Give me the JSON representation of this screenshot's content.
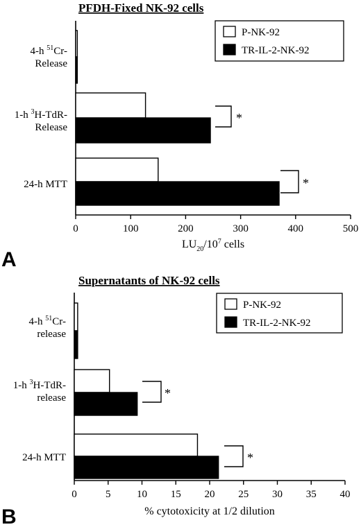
{
  "figure": {
    "background": "#ffffff"
  },
  "chart_data": [
    {
      "panel": "A",
      "type": "bar",
      "orientation": "horizontal",
      "title": "PFDH-Fixed NK-92 cells",
      "xlabel": "LU20/10^7 cells",
      "xlabel_parts": {
        "base": "LU",
        "sub": "20",
        "mid": "/10",
        "sup": "7",
        "tail": " cells"
      },
      "xlim": [
        0,
        500
      ],
      "xticks": [
        0,
        100,
        200,
        300,
        400,
        500
      ],
      "categories": [
        {
          "line1_pre": "4-h ",
          "line1_sup": "51",
          "line1_post": "Cr-",
          "line2": "Release"
        },
        {
          "line1_pre": "1-h ",
          "line1_sup": "3",
          "line1_post": "H-TdR-",
          "line2": "Release"
        },
        {
          "line1_pre": "24-h MTT",
          "line1_sup": "",
          "line1_post": "",
          "line2": ""
        }
      ],
      "series": [
        {
          "name": "P-NK-92",
          "color": "#ffffff",
          "values": [
            3,
            127,
            150
          ]
        },
        {
          "name": "TR-IL-2-NK-92",
          "color": "#000000",
          "values": [
            3,
            245,
            370
          ]
        }
      ],
      "significance": [
        {
          "category_index": 1,
          "label": "*"
        },
        {
          "category_index": 2,
          "label": "*"
        }
      ],
      "legend_position": "top-right",
      "grid": false
    },
    {
      "panel": "B",
      "type": "bar",
      "orientation": "horizontal",
      "title": "Supernatants of NK-92 cells",
      "xlabel": "% cytotoxicity at 1/2 dilution",
      "xlabel_parts": {
        "base": "% cytotoxicity at 1/2 dilution",
        "sub": "",
        "mid": "",
        "sup": "",
        "tail": ""
      },
      "xlim": [
        0,
        40
      ],
      "xticks": [
        0,
        5,
        10,
        15,
        20,
        25,
        30,
        35,
        40
      ],
      "categories": [
        {
          "line1_pre": "4-h ",
          "line1_sup": "51",
          "line1_post": "Cr-",
          "line2": "release"
        },
        {
          "line1_pre": "1-h ",
          "line1_sup": "3",
          "line1_post": "H-TdR-",
          "line2": "release"
        },
        {
          "line1_pre": "24-h MTT",
          "line1_sup": "",
          "line1_post": "",
          "line2": ""
        }
      ],
      "series": [
        {
          "name": "P-NK-92",
          "color": "#ffffff",
          "values": [
            0.5,
            5.2,
            18.2
          ]
        },
        {
          "name": "TR-IL-2-NK-92",
          "color": "#000000",
          "values": [
            0.5,
            9.3,
            21.3
          ]
        }
      ],
      "significance": [
        {
          "category_index": 1,
          "label": "*"
        },
        {
          "category_index": 2,
          "label": "*"
        }
      ],
      "legend_position": "top-right",
      "grid": false
    }
  ]
}
